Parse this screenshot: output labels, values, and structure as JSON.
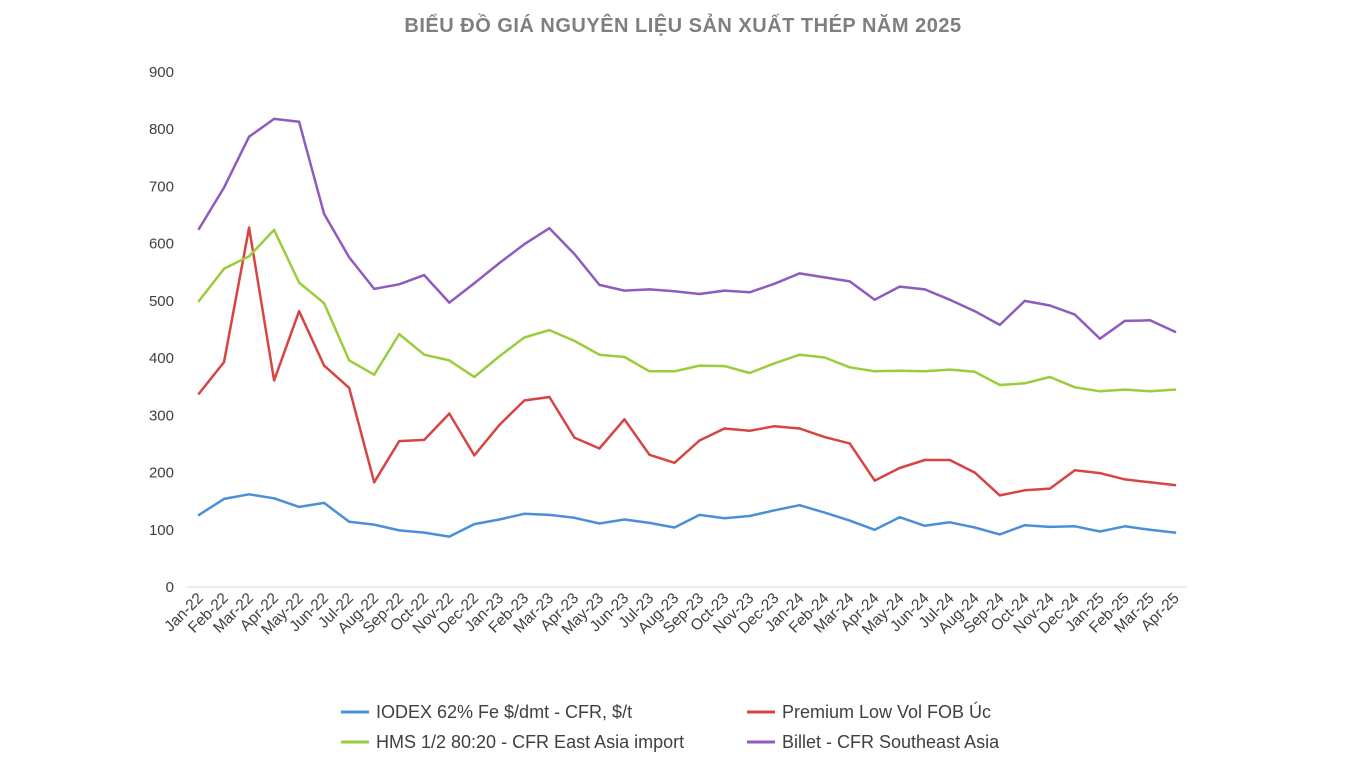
{
  "chart_data": {
    "type": "line",
    "title": "BIỂU ĐỒ GIÁ NGUYÊN LIỆU SẢN XUẤT THÉP NĂM 2025",
    "xlabel": "",
    "ylabel": "",
    "ylim": [
      0,
      900
    ],
    "yticks": [
      "0",
      "100",
      "200",
      "300",
      "400",
      "500",
      "600",
      "700",
      "800",
      "900"
    ],
    "grid": false,
    "legend_position": "bottom",
    "categories": [
      "Jan-22",
      "Feb-22",
      "Mar-22",
      "Apr-22",
      "May-22",
      "Jun-22",
      "Jul-22",
      "Aug-22",
      "Sep-22",
      "Oct-22",
      "Nov-22",
      "Dec-22",
      "Jan-23",
      "Feb-23",
      "Mar-23",
      "Apr-23",
      "May-23",
      "Jun-23",
      "Jul-23",
      "Aug-23",
      "Sep-23",
      "Oct-23",
      "Nov-23",
      "Dec-23",
      "Jan-24",
      "Feb-24",
      "Mar-24",
      "Apr-24",
      "May-24",
      "Jun-24",
      "Jul-24",
      "Aug-24",
      "Sep-24",
      "Oct-24",
      "Nov-24",
      "Dec-24",
      "Jan-25",
      "Feb-25",
      "Mar-25",
      "Apr-25"
    ],
    "series": [
      {
        "name": "IODEX 62% Fe $/dmt - CFR, $/t",
        "color": "#4a90d9",
        "values": [
          126,
          154,
          162,
          155,
          140,
          147,
          114,
          109,
          99,
          95,
          88,
          110,
          118,
          128,
          126,
          121,
          111,
          118,
          112,
          104,
          126,
          120,
          124,
          134,
          143,
          130,
          116,
          100,
          122,
          107,
          113,
          104,
          92,
          108,
          105,
          106,
          97,
          106,
          100,
          95
        ]
      },
      {
        "name": "Premium Low Vol FOB Úc",
        "color": "#d64541",
        "values": [
          338,
          393,
          628,
          361,
          482,
          387,
          348,
          183,
          255,
          257,
          303,
          230,
          283,
          326,
          332,
          261,
          242,
          293,
          231,
          217,
          256,
          277,
          273,
          281,
          277,
          262,
          251,
          186,
          208,
          222,
          222,
          200,
          160,
          169,
          172,
          204,
          199,
          188,
          183,
          178
        ]
      },
      {
        "name": "HMS 1/2 80:20 - CFR East Asia import",
        "color": "#9acd3c",
        "values": [
          500,
          556,
          578,
          624,
          532,
          496,
          396,
          371,
          442,
          406,
          396,
          367,
          403,
          436,
          449,
          430,
          406,
          402,
          377,
          377,
          387,
          386,
          374,
          391,
          406,
          401,
          384,
          377,
          378,
          377,
          380,
          376,
          353,
          356,
          367,
          349,
          342,
          345,
          342,
          345
        ]
      },
      {
        "name": "Billet - CFR Southeast Asia",
        "color": "#8e5bbf",
        "values": [
          626,
          698,
          787,
          818,
          813,
          652,
          576,
          521,
          529,
          545,
          497,
          531,
          566,
          599,
          627,
          582,
          528,
          518,
          520,
          517,
          512,
          518,
          515,
          530,
          548,
          541,
          534,
          502,
          525,
          520,
          502,
          482,
          458,
          500,
          492,
          476,
          434,
          465,
          466,
          446
        ]
      }
    ]
  }
}
